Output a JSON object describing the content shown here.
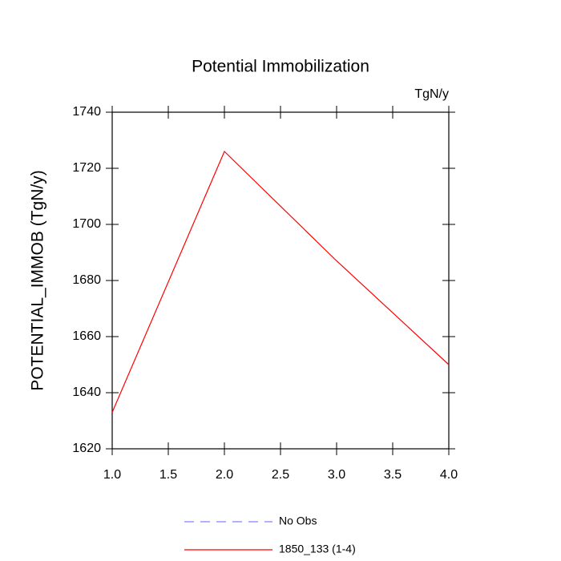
{
  "chart_data": {
    "type": "line",
    "title": "Potential Immobilization",
    "units": "TgN/y",
    "y_label": "POTENTIAL_IMMOB  (TgN/y)",
    "x": [
      1,
      2,
      3,
      4
    ],
    "series": [
      {
        "name": "No Obs",
        "color": "#8080ff",
        "dashed": true,
        "values": [
          null,
          null,
          null,
          null
        ]
      },
      {
        "name": "1850_133 (1-4)",
        "color": "#ff0000",
        "dashed": false,
        "values": [
          1633,
          1726,
          1687,
          1650
        ]
      }
    ],
    "xlim": [
      1,
      4
    ],
    "xticks": [
      {
        "value": 1,
        "label": "1.0"
      },
      1.5,
      {
        "value": 2,
        "label": "2.0"
      },
      2.5,
      {
        "value": 3,
        "label": "3.0"
      },
      3.5,
      {
        "value": 4,
        "label": "4.0"
      }
    ],
    "ylim": [
      1620,
      1740
    ],
    "yticks": [
      1620,
      1640,
      1660,
      1680,
      1700,
      1720,
      1740
    ]
  }
}
